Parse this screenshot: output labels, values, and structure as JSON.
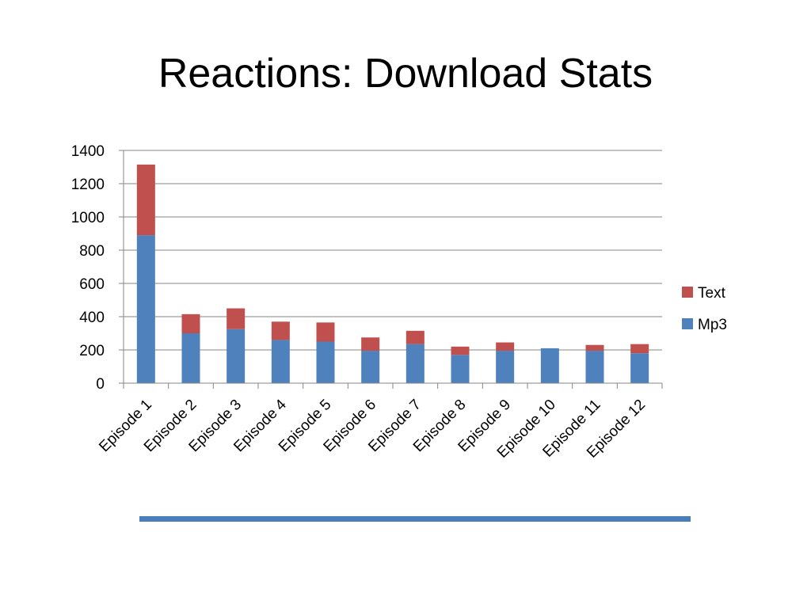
{
  "slide": {
    "title": "Reactions: Download Stats"
  },
  "colors": {
    "accent_rule": "#4a7ebb",
    "gridline": "#868686",
    "axis": "#868686"
  },
  "chart_data": {
    "type": "bar",
    "stacked": true,
    "categories": [
      "Episode 1",
      "Episode 2",
      "Episode 3",
      "Episode 4",
      "Episode 5",
      "Episode 6",
      "Episode 7",
      "Episode 8",
      "Episode 9",
      "Episode 10",
      "Episode 11",
      "Episode 12"
    ],
    "series": [
      {
        "name": "Mp3",
        "color": "#4f81bd",
        "values": [
          890,
          300,
          325,
          260,
          250,
          195,
          235,
          170,
          195,
          210,
          195,
          180
        ]
      },
      {
        "name": "Text",
        "color": "#c0504d",
        "values": [
          425,
          115,
          125,
          110,
          115,
          80,
          80,
          50,
          50,
          0,
          35,
          55
        ]
      }
    ],
    "ylim": [
      0,
      1400
    ],
    "yticks": [
      0,
      200,
      400,
      600,
      800,
      1000,
      1200,
      1400
    ],
    "grid": true,
    "legend": {
      "position": "right",
      "order": [
        "Text",
        "Mp3"
      ]
    },
    "title": "",
    "xlabel": "",
    "ylabel": ""
  }
}
